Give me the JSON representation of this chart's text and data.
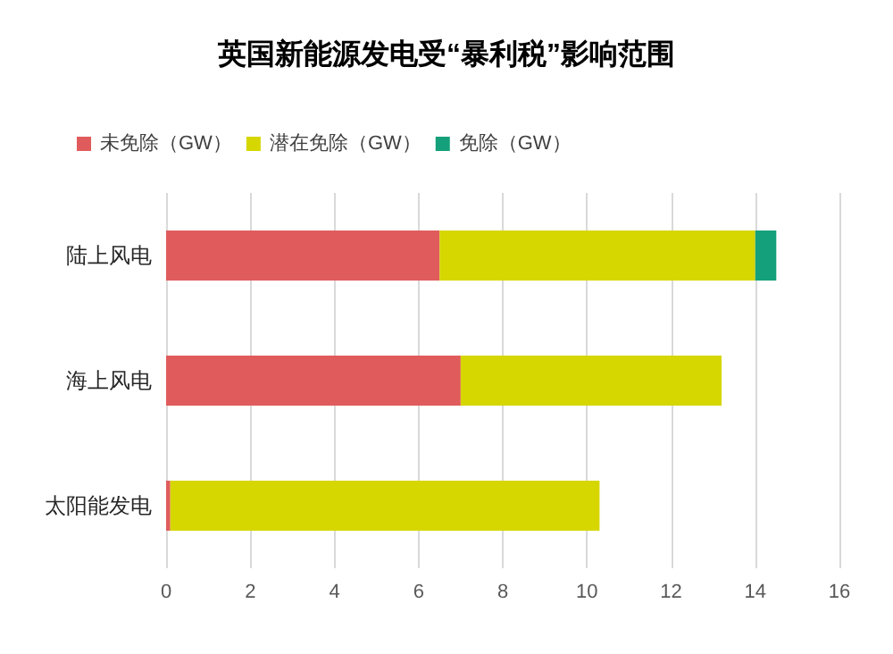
{
  "chart_data": {
    "type": "bar",
    "orientation": "horizontal",
    "stacked": true,
    "title": "英国新能源发电受“暴利税”影响范围",
    "categories": [
      "陆上风电",
      "海上风电",
      "太阳能发电"
    ],
    "series": [
      {
        "name": "未免除（GW）",
        "color": "#e05c5c",
        "values": [
          6.5,
          7.0,
          0.1
        ]
      },
      {
        "name": "潜在免除（GW）",
        "color": "#d6d600",
        "values": [
          7.5,
          6.2,
          10.2
        ]
      },
      {
        "name": "免除（GW）",
        "color": "#14a07a",
        "values": [
          0.5,
          0,
          0
        ]
      }
    ],
    "xlim": [
      0,
      16
    ],
    "xticks": [
      0,
      2,
      4,
      6,
      8,
      10,
      12,
      14,
      16
    ],
    "grid": "x",
    "legend": "top left"
  }
}
